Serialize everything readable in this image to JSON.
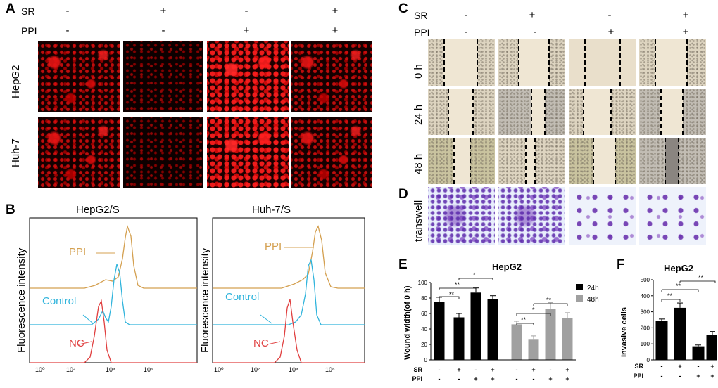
{
  "panels": {
    "A": {
      "label": "A",
      "rows": [
        {
          "name": "SR",
          "signs": [
            "-",
            "+",
            "-",
            "+"
          ]
        },
        {
          "name": "PPI",
          "signs": [
            "-",
            "-",
            "+",
            "+"
          ]
        }
      ],
      "cell_lines": [
        "HepG2",
        "Huh-7"
      ]
    },
    "B": {
      "label": "B",
      "plots": [
        {
          "title": "HepG2/S",
          "ylabel": "Fluorescence intensity",
          "labels": {
            "ppi": "PPI",
            "control": "Control",
            "nc": "NC"
          }
        },
        {
          "title": "Huh-7/S",
          "ylabel": "Fluorescence intensity",
          "labels": {
            "ppi": "PPI",
            "control": "Control",
            "nc": "NC"
          }
        }
      ],
      "ticks": [
        "10⁰",
        "10²",
        "10⁴",
        "10⁶"
      ],
      "colors": {
        "ppi": "#d4a050",
        "control": "#30b4dc",
        "nc": "#e04040"
      }
    },
    "C": {
      "label": "C",
      "rows": [
        {
          "name": "SR",
          "signs": [
            "-",
            "+",
            "-",
            "+"
          ]
        },
        {
          "name": "PPI",
          "signs": [
            "-",
            "-",
            "+",
            "+"
          ]
        }
      ],
      "times": [
        "0 h",
        "24 h",
        "48 h"
      ]
    },
    "D": {
      "label": "D",
      "row_label": "transwell"
    },
    "E": {
      "label": "E"
    },
    "F": {
      "label": "F"
    }
  },
  "chart_data": [
    {
      "type": "bar",
      "title": "HepG2",
      "ylabel": "Wound width(of 0 h)",
      "ylim": [
        0,
        100
      ],
      "yticks": [
        "0",
        "20",
        "40",
        "60",
        "80",
        "100"
      ],
      "categories": [
        "SR-/PPI-",
        "SR+/PPI-",
        "SR-/PPI+",
        "SR+/PPI+"
      ],
      "row_labels": [
        "SR",
        "PPI"
      ],
      "sr_signs": [
        "-",
        "+",
        "-",
        "+"
      ],
      "ppi_signs": [
        "-",
        "-",
        "+",
        "+"
      ],
      "series": [
        {
          "name": "24h",
          "color": "#000000",
          "values": [
            75,
            55,
            87,
            79
          ],
          "errors": [
            6,
            5,
            6,
            4
          ]
        },
        {
          "name": "48h",
          "color": "#a0a0a0",
          "values": [
            46,
            27,
            66,
            54
          ],
          "errors": [
            4,
            4,
            8,
            7
          ]
        }
      ],
      "significance": [
        "**",
        "**",
        "*",
        "**",
        "*",
        "**"
      ]
    },
    {
      "type": "bar",
      "title": "HepG2",
      "ylabel": "Invasive cells",
      "ylim": [
        0,
        500
      ],
      "yticks": [
        "0",
        "100",
        "200",
        "300",
        "400",
        "500"
      ],
      "categories": [
        "SR-/PPI-",
        "SR+/PPI-",
        "SR-/PPI+",
        "SR+/PPI+"
      ],
      "row_labels": [
        "SR",
        "PPI"
      ],
      "sr_signs": [
        "-",
        "+",
        "-",
        "+"
      ],
      "ppi_signs": [
        "-",
        "-",
        "+",
        "+"
      ],
      "series": [
        {
          "name": "Invasive cells",
          "color": "#000000",
          "values": [
            245,
            325,
            85,
            157
          ],
          "errors": [
            10,
            30,
            8,
            20
          ]
        }
      ],
      "significance": [
        "**",
        "**",
        "**"
      ]
    }
  ]
}
